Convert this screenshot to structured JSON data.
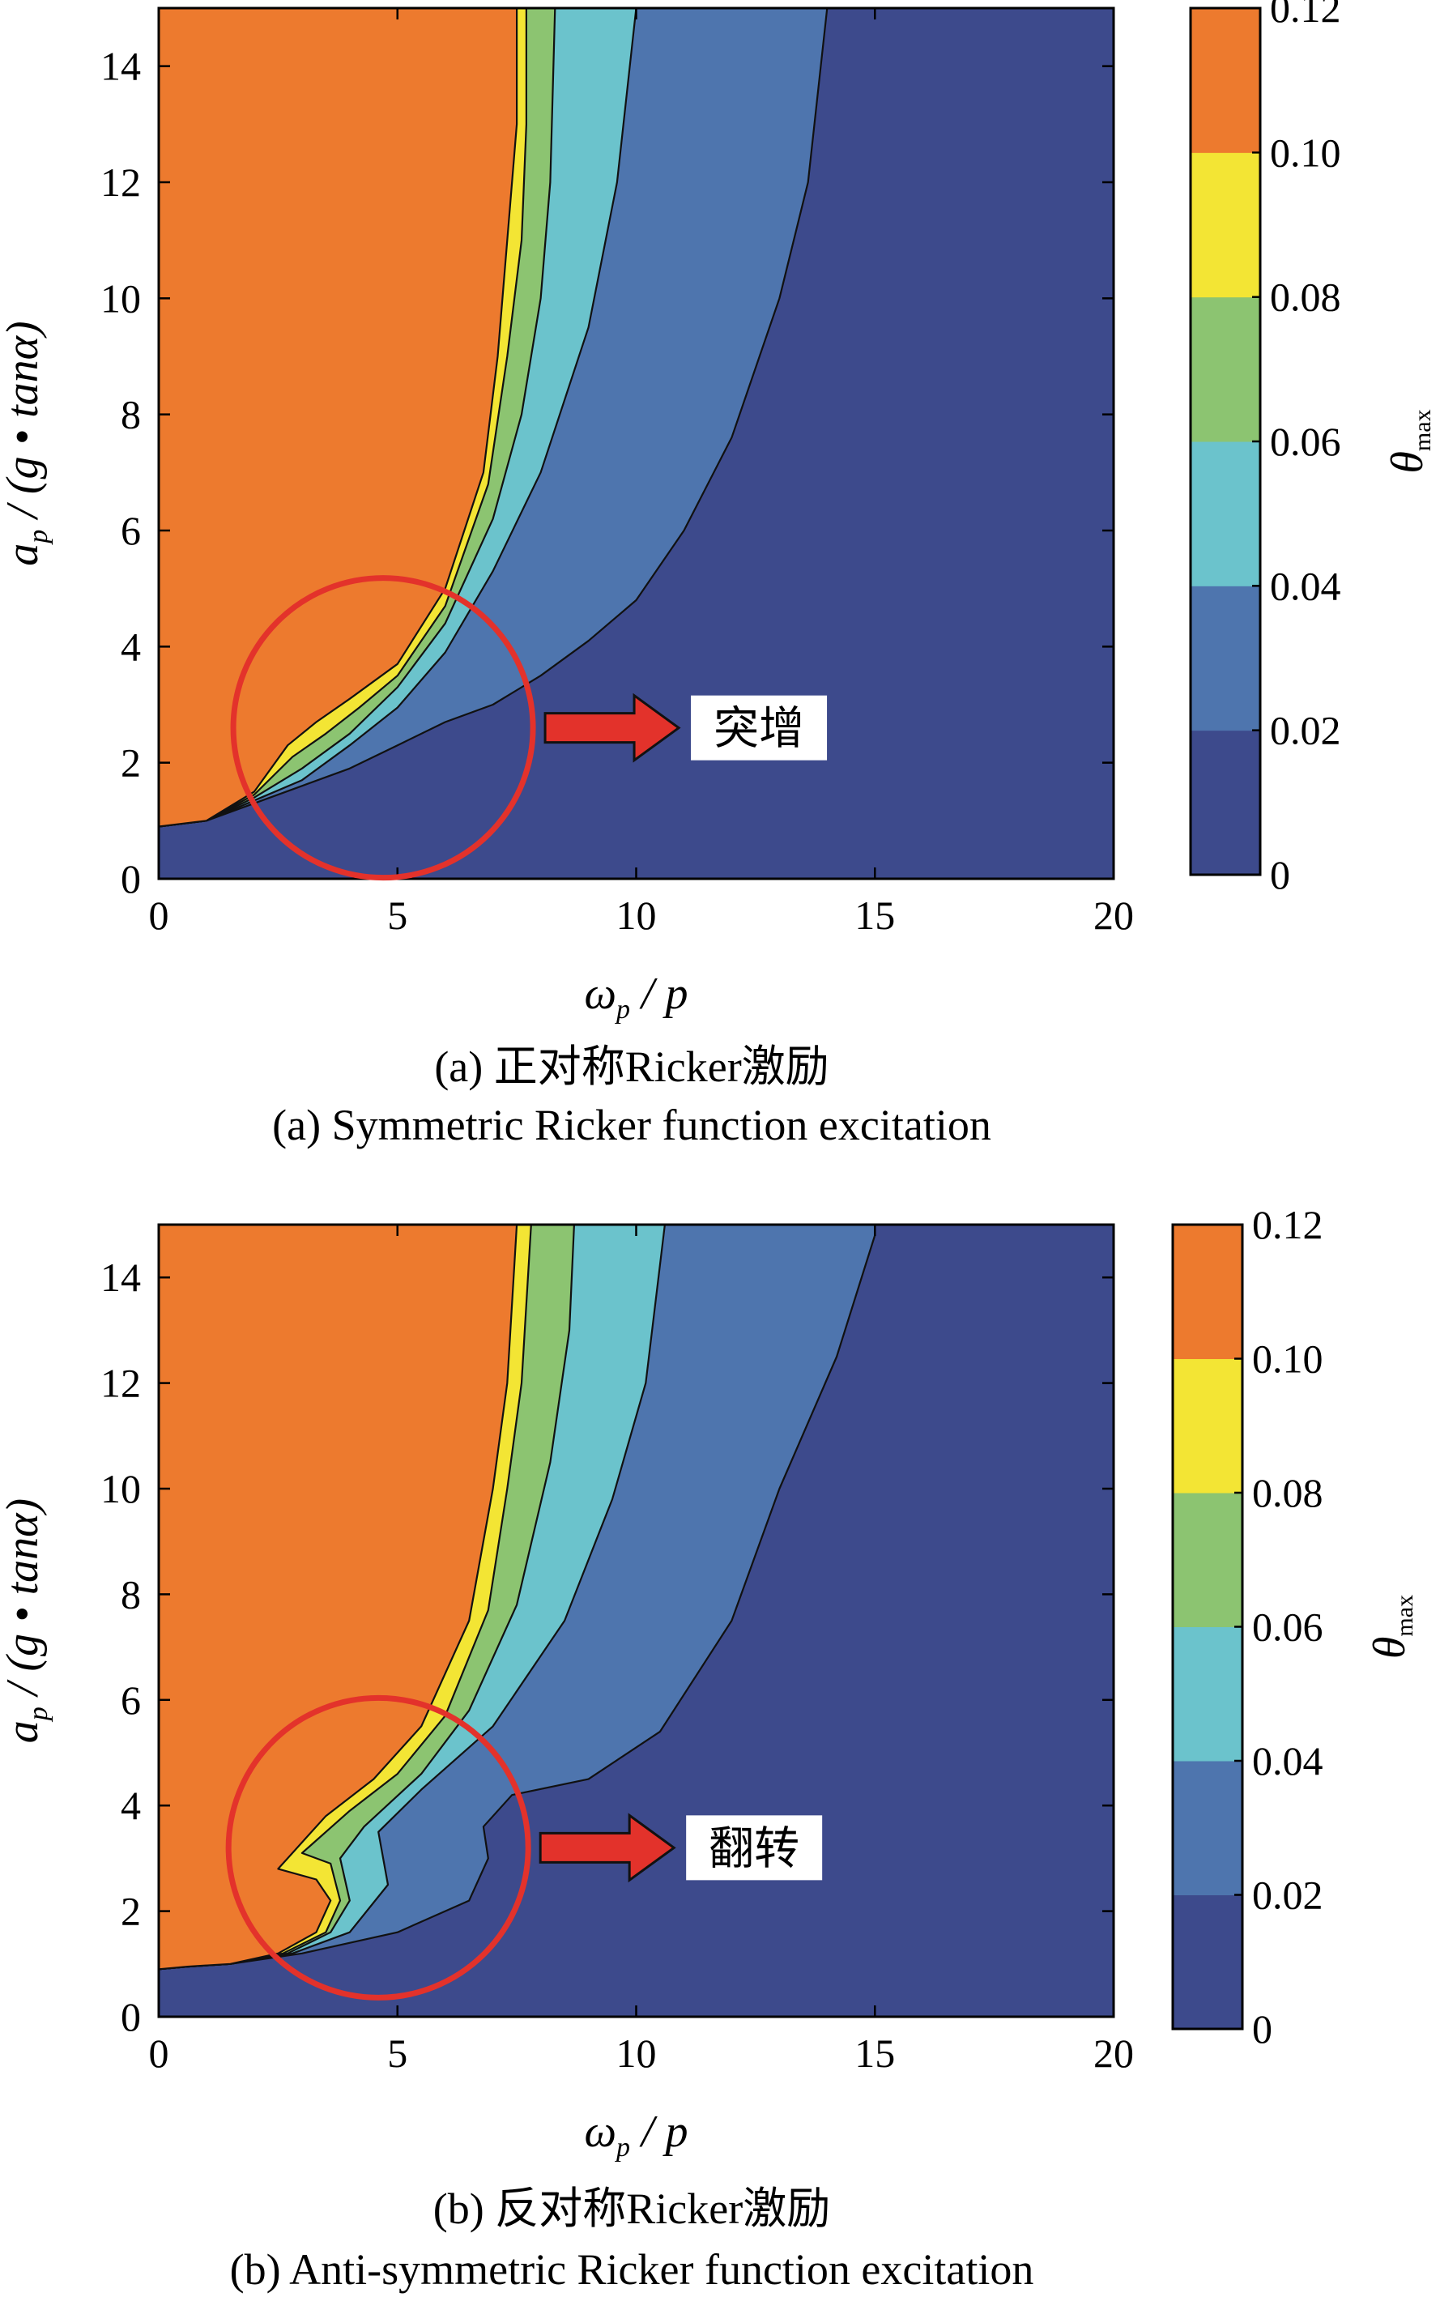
{
  "chart_data": [
    {
      "id": "a",
      "type": "heatmap",
      "subtype": "filled-contour",
      "xlabel": "ωp / p",
      "ylabel": "ap / (g • tanα)",
      "xlim": [
        0,
        20
      ],
      "ylim": [
        0,
        15
      ],
      "x_ticks": [
        "0",
        "5",
        "10",
        "15",
        "20"
      ],
      "y_ticks": [
        "0",
        "2",
        "4",
        "6",
        "8",
        "10",
        "12",
        "14"
      ],
      "colorbar": {
        "label": "θmax",
        "ticks": [
          "0",
          "0.02",
          "0.04",
          "0.06",
          "0.08",
          "0.10",
          "0.12"
        ],
        "levels": [
          {
            "min": 0.0,
            "max": 0.02,
            "color": "#3d4a8c"
          },
          {
            "min": 0.02,
            "max": 0.04,
            "color": "#4e75ae"
          },
          {
            "min": 0.04,
            "max": 0.06,
            "color": "#6bc3cc"
          },
          {
            "min": 0.06,
            "max": 0.08,
            "color": "#8cc471"
          },
          {
            "min": 0.08,
            "max": 0.1,
            "color": "#f3e534"
          },
          {
            "min": 0.1,
            "max": 0.12,
            "color": "#ed7a2e"
          }
        ]
      },
      "contour_boundaries": [
        {
          "level": 0.1,
          "points": [
            [
              0,
              0.9
            ],
            [
              1,
              1.0
            ],
            [
              2,
              1.5
            ],
            [
              2.7,
              2.3
            ],
            [
              3.3,
              2.7
            ],
            [
              4,
              3.1
            ],
            [
              5,
              3.7
            ],
            [
              6,
              5.0
            ],
            [
              6.8,
              7.0
            ],
            [
              7.1,
              9.0
            ],
            [
              7.3,
              11
            ],
            [
              7.5,
              13
            ],
            [
              7.5,
              15
            ]
          ]
        },
        {
          "level": 0.08,
          "points": [
            [
              0,
              0.9
            ],
            [
              1,
              1.0
            ],
            [
              2,
              1.45
            ],
            [
              2.8,
              2.1
            ],
            [
              3.5,
              2.5
            ],
            [
              4.2,
              2.95
            ],
            [
              5,
              3.5
            ],
            [
              6,
              4.7
            ],
            [
              6.9,
              6.8
            ],
            [
              7.3,
              9.0
            ],
            [
              7.6,
              11
            ],
            [
              7.7,
              13
            ],
            [
              7.7,
              15
            ]
          ]
        },
        {
          "level": 0.06,
          "points": [
            [
              0,
              0.9
            ],
            [
              1,
              1.0
            ],
            [
              2,
              1.4
            ],
            [
              3,
              1.9
            ],
            [
              4,
              2.5
            ],
            [
              5,
              3.3
            ],
            [
              6,
              4.4
            ],
            [
              7,
              6.2
            ],
            [
              7.6,
              8.0
            ],
            [
              8,
              10
            ],
            [
              8.2,
              12
            ],
            [
              8.3,
              15
            ]
          ]
        },
        {
          "level": 0.04,
          "points": [
            [
              0,
              0.9
            ],
            [
              1,
              1.0
            ],
            [
              2,
              1.35
            ],
            [
              3,
              1.7
            ],
            [
              4,
              2.3
            ],
            [
              5,
              2.95
            ],
            [
              6,
              3.9
            ],
            [
              7,
              5.3
            ],
            [
              8,
              7.0
            ],
            [
              9,
              9.5
            ],
            [
              9.6,
              12
            ],
            [
              10,
              15
            ]
          ]
        },
        {
          "level": 0.02,
          "points": [
            [
              0,
              0.9
            ],
            [
              1,
              1.0
            ],
            [
              2,
              1.3
            ],
            [
              3,
              1.6
            ],
            [
              4,
              1.9
            ],
            [
              5,
              2.3
            ],
            [
              6,
              2.7
            ],
            [
              7,
              3.0
            ],
            [
              8,
              3.5
            ],
            [
              9,
              4.1
            ],
            [
              10,
              4.8
            ],
            [
              11,
              6.0
            ],
            [
              12,
              7.6
            ],
            [
              13,
              10
            ],
            [
              13.6,
              12
            ],
            [
              13.8,
              13.5
            ],
            [
              14,
              15
            ]
          ]
        }
      ],
      "annotation": {
        "text": "突增",
        "circle_center": [
          4.7,
          2.6
        ]
      },
      "caption_cn": "(a) 正对称Ricker激励",
      "caption_en": "(a) Symmetric Ricker function excitation"
    },
    {
      "id": "b",
      "type": "heatmap",
      "subtype": "filled-contour",
      "xlabel": "ωp / p",
      "ylabel": "ap / (g • tanα)",
      "xlim": [
        0,
        20
      ],
      "ylim": [
        0,
        15
      ],
      "x_ticks": [
        "0",
        "5",
        "10",
        "15",
        "20"
      ],
      "y_ticks": [
        "0",
        "2",
        "4",
        "6",
        "8",
        "10",
        "12",
        "14"
      ],
      "colorbar": {
        "label": "θmax",
        "ticks": [
          "0",
          "0.02",
          "0.04",
          "0.06",
          "0.08",
          "0.10",
          "0.12"
        ],
        "levels": [
          {
            "min": 0.0,
            "max": 0.02,
            "color": "#3d4a8c"
          },
          {
            "min": 0.02,
            "max": 0.04,
            "color": "#4e75ae"
          },
          {
            "min": 0.04,
            "max": 0.06,
            "color": "#6bc3cc"
          },
          {
            "min": 0.06,
            "max": 0.08,
            "color": "#8cc471"
          },
          {
            "min": 0.08,
            "max": 0.1,
            "color": "#f3e534"
          },
          {
            "min": 0.1,
            "max": 0.12,
            "color": "#ed7a2e"
          }
        ]
      },
      "contour_boundaries": [
        {
          "level": 0.1,
          "points": [
            [
              0,
              0.9
            ],
            [
              0.6,
              0.95
            ],
            [
              1.5,
              1.0
            ],
            [
              2.5,
              1.2
            ],
            [
              3.3,
              1.6
            ],
            [
              3.6,
              2.2
            ],
            [
              3.3,
              2.6
            ],
            [
              2.5,
              2.8
            ],
            [
              3.5,
              3.8
            ],
            [
              4.5,
              4.5
            ],
            [
              5.5,
              5.5
            ],
            [
              6.5,
              7.5
            ],
            [
              7,
              10
            ],
            [
              7.3,
              12
            ],
            [
              7.5,
              15
            ]
          ]
        },
        {
          "level": 0.08,
          "points": [
            [
              0,
              0.9
            ],
            [
              0.6,
              0.95
            ],
            [
              1.5,
              1.0
            ],
            [
              2.6,
              1.2
            ],
            [
              3.5,
              1.6
            ],
            [
              3.8,
              2.2
            ],
            [
              3.6,
              2.9
            ],
            [
              3.0,
              3.1
            ],
            [
              4.0,
              3.9
            ],
            [
              5.0,
              4.6
            ],
            [
              6,
              5.7
            ],
            [
              6.9,
              7.7
            ],
            [
              7.3,
              10
            ],
            [
              7.6,
              12
            ],
            [
              7.8,
              15
            ]
          ]
        },
        {
          "level": 0.06,
          "points": [
            [
              0,
              0.9
            ],
            [
              0.6,
              0.95
            ],
            [
              1.5,
              1.0
            ],
            [
              2.7,
              1.2
            ],
            [
              3.6,
              1.6
            ],
            [
              4.0,
              2.2
            ],
            [
              3.8,
              3.0
            ],
            [
              4.3,
              3.6
            ],
            [
              5.5,
              4.6
            ],
            [
              6.5,
              5.8
            ],
            [
              7.5,
              7.8
            ],
            [
              8.2,
              10.5
            ],
            [
              8.6,
              13
            ],
            [
              8.7,
              15
            ]
          ]
        },
        {
          "level": 0.04,
          "points": [
            [
              0,
              0.9
            ],
            [
              0.6,
              0.95
            ],
            [
              1.5,
              1.0
            ],
            [
              2.8,
              1.2
            ],
            [
              4.0,
              1.6
            ],
            [
              4.8,
              2.5
            ],
            [
              4.6,
              3.5
            ],
            [
              5.5,
              4.3
            ],
            [
              7,
              5.5
            ],
            [
              8.5,
              7.5
            ],
            [
              9.5,
              9.8
            ],
            [
              10.2,
              12
            ],
            [
              10.6,
              15
            ]
          ]
        },
        {
          "level": 0.02,
          "points": [
            [
              0,
              0.9
            ],
            [
              0.6,
              0.95
            ],
            [
              1.5,
              1.0
            ],
            [
              3,
              1.2
            ],
            [
              5,
              1.6
            ],
            [
              6.5,
              2.2
            ],
            [
              6.9,
              3.0
            ],
            [
              6.8,
              3.6
            ],
            [
              7.4,
              4.2
            ],
            [
              9,
              4.5
            ],
            [
              10.5,
              5.4
            ],
            [
              12,
              7.5
            ],
            [
              13,
              10
            ],
            [
              14.2,
              12.5
            ],
            [
              15,
              14.8
            ],
            [
              15,
              15
            ]
          ]
        }
      ],
      "annotation": {
        "text": "翻转",
        "circle_center": [
          4.6,
          3.2
        ]
      },
      "caption_cn": "(b) 反对称Ricker激励",
      "caption_en": "(b) Anti-symmetric Ricker function excitation"
    }
  ]
}
